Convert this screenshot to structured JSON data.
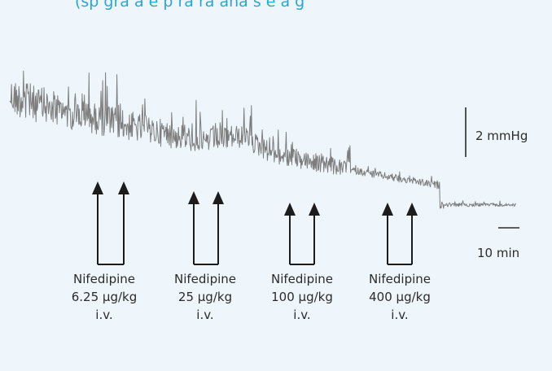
{
  "header": {
    "title_fragment": "(sp gra  a    e p ra  ra  ana  s  e  a  g"
  },
  "chart_data": {
    "type": "line",
    "title": "",
    "xlabel": "",
    "ylabel": "",
    "description_series": "Intravesical pressure trace declining over time with repeated nifedipine doses",
    "scale_bars": {
      "pressure": "2 mmHg",
      "time": "10 min"
    },
    "doses": [
      {
        "drug": "Nifedipine",
        "dose": "6.25 μg/kg",
        "route": "i.v."
      },
      {
        "drug": "Nifedipine",
        "dose": "25 μg/kg",
        "route": "i.v."
      },
      {
        "drug": "Nifedipine",
        "dose": "100 μg/kg",
        "route": "i.v."
      },
      {
        "drug": "Nifedipine",
        "dose": "400 μg/kg",
        "route": "i.v."
      }
    ],
    "colors": {
      "trace": "#7d7d7d",
      "arrows": "#1c1c1c",
      "scale": "#2b2b2b",
      "accent": "#2aa6d3"
    }
  }
}
